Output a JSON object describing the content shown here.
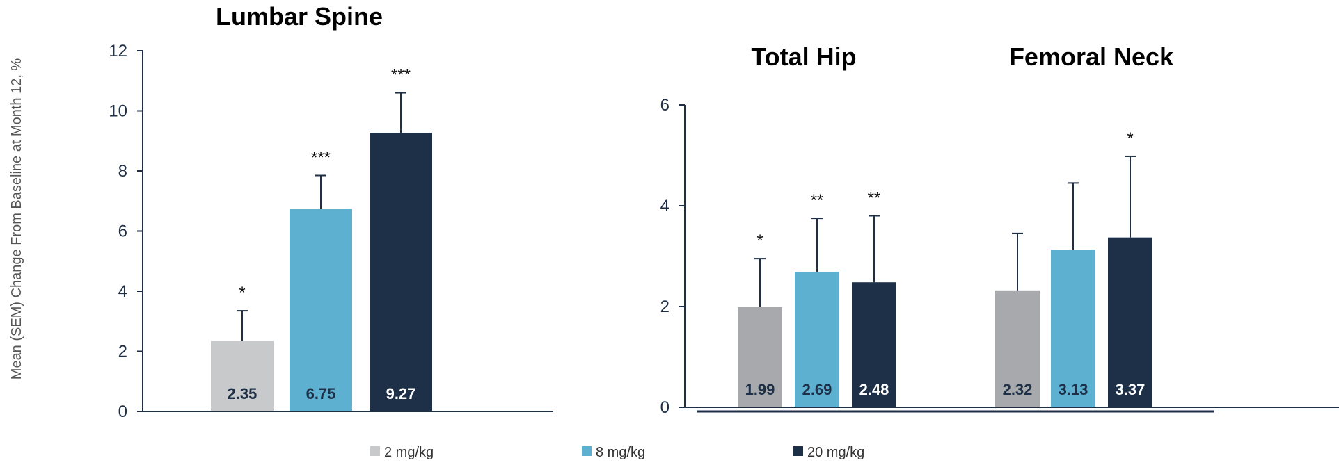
{
  "chart_data": {
    "type": "bar",
    "ylabel": "Mean (SEM) Change From Baseline at Month 12, %",
    "series_names": [
      "2 mg/kg",
      "8 mg/kg",
      "20 mg/kg"
    ],
    "colors": {
      "2 mg/kg": "#c8c9cb",
      "8 mg/kg": "#5eb0d0",
      "20 mg/kg": "#1e3048"
    },
    "colors_hip": {
      "2 mg/kg": "#a7a9ac",
      "8 mg/kg": "#5eb0d0",
      "20 mg/kg": "#1e3048"
    },
    "panels": [
      {
        "title": "Lumbar Spine",
        "ylim": [
          0,
          12
        ],
        "yticks": [
          0,
          2,
          4,
          6,
          8,
          10,
          12
        ],
        "groups": [
          {
            "bars": [
              {
                "series": "2 mg/kg",
                "value": 2.35,
                "label": "2.35",
                "sem_top": 3.35,
                "sig": "*"
              },
              {
                "series": "8 mg/kg",
                "value": 6.75,
                "label": "6.75",
                "sem_top": 7.85,
                "sig": "***"
              },
              {
                "series": "20 mg/kg",
                "value": 9.27,
                "label": "9.27",
                "sem_top": 10.6,
                "sig": "***"
              }
            ]
          }
        ]
      },
      {
        "title": "",
        "ylim": [
          0,
          6
        ],
        "yticks": [
          0,
          2,
          4,
          6
        ],
        "groups": [
          {
            "title": "Total Hip",
            "bars": [
              {
                "series": "2 mg/kg",
                "value": 1.99,
                "label": "1.99",
                "sem_top": 2.95,
                "sig": "*"
              },
              {
                "series": "8 mg/kg",
                "value": 2.69,
                "label": "2.69",
                "sem_top": 3.75,
                "sig": "**"
              },
              {
                "series": "20 mg/kg",
                "value": 2.48,
                "label": "2.48",
                "sem_top": 3.8,
                "sig": "**"
              }
            ]
          },
          {
            "title": "Femoral Neck",
            "bars": [
              {
                "series": "2 mg/kg",
                "value": 2.32,
                "label": "2.32",
                "sem_top": 3.45,
                "sig": ""
              },
              {
                "series": "8 mg/kg",
                "value": 3.13,
                "label": "3.13",
                "sem_top": 4.45,
                "sig": ""
              },
              {
                "series": "20 mg/kg",
                "value": 3.37,
                "label": "3.37",
                "sem_top": 4.98,
                "sig": "*"
              }
            ]
          }
        ]
      }
    ]
  },
  "legend": [
    {
      "label": "2 mg/kg",
      "color": "#c8c9cb"
    },
    {
      "label": "8 mg/kg",
      "color": "#5eb0d0"
    },
    {
      "label": "20 mg/kg",
      "color": "#1e3048"
    }
  ]
}
